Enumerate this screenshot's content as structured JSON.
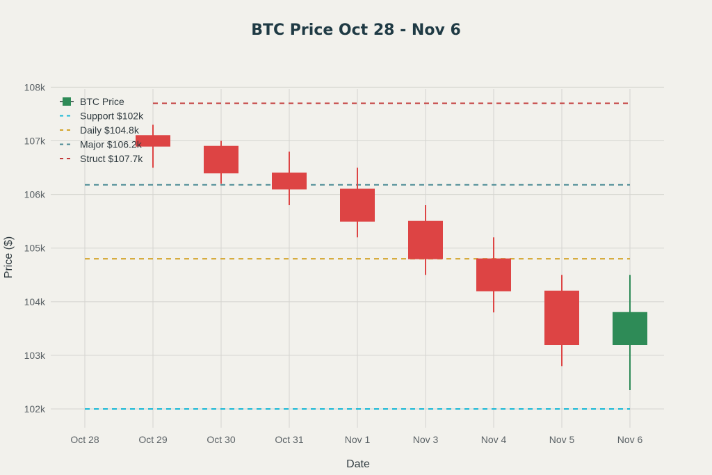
{
  "colors": {
    "background": "#f2f1ec",
    "increasing": "#2e8b57",
    "decreasing": "#dd4444",
    "grid": "#d4d4cf"
  },
  "chart_data": {
    "type": "candlestick",
    "title": "BTC Price Oct 28 - Nov 6",
    "xlabel": "Date",
    "ylabel": "Price ($)",
    "categories": [
      "Oct 28",
      "Oct 29",
      "Oct 30",
      "Oct 31",
      "Nov 1",
      "Nov 3",
      "Nov 4",
      "Nov 5",
      "Nov 6"
    ],
    "ylim": [
      101650,
      108200
    ],
    "y_ticks": [
      102000,
      103000,
      104000,
      105000,
      106000,
      107000,
      108000
    ],
    "y_tick_labels": [
      "102k",
      "103k",
      "104k",
      "105k",
      "106k",
      "107k",
      "108k"
    ],
    "grid": true,
    "legend_position": "top-left",
    "series": [
      {
        "name": "BTC Price",
        "candles": [
          {
            "x": "Oct 29",
            "open": 107100,
            "high": 107300,
            "low": 106500,
            "close": 106900
          },
          {
            "x": "Oct 30",
            "open": 106900,
            "high": 107000,
            "low": 106200,
            "close": 106400
          },
          {
            "x": "Oct 31",
            "open": 106400,
            "high": 106800,
            "low": 105800,
            "close": 106100
          },
          {
            "x": "Nov 1",
            "open": 106100,
            "high": 106500,
            "low": 105200,
            "close": 105500
          },
          {
            "x": "Nov 3",
            "open": 105500,
            "high": 105800,
            "low": 104500,
            "close": 104800
          },
          {
            "x": "Nov 4",
            "open": 104800,
            "high": 105200,
            "low": 103800,
            "close": 104200
          },
          {
            "x": "Nov 5",
            "open": 104200,
            "high": 104500,
            "low": 102800,
            "close": 103200
          },
          {
            "x": "Nov 6",
            "open": 103200,
            "high": 104500,
            "low": 102350,
            "close": 103800
          }
        ]
      }
    ],
    "reference_lines": [
      {
        "name": "Support $102k",
        "y": 102000,
        "color": "#17b8d6",
        "x_from": "Oct 28",
        "x_to": "Nov 6"
      },
      {
        "name": "Daily $104.8k",
        "y": 104800,
        "color": "#d4a52c",
        "x_from": "Oct 28",
        "x_to": "Nov 6"
      },
      {
        "name": "Major $106.2k",
        "y": 106180,
        "color": "#4a8a94",
        "x_from": "Oct 28",
        "x_to": "Nov 6"
      },
      {
        "name": "Struct $107.7k",
        "y": 107700,
        "color": "#c23a3a",
        "x_from": "Oct 29",
        "x_to": "Nov 6"
      }
    ]
  }
}
